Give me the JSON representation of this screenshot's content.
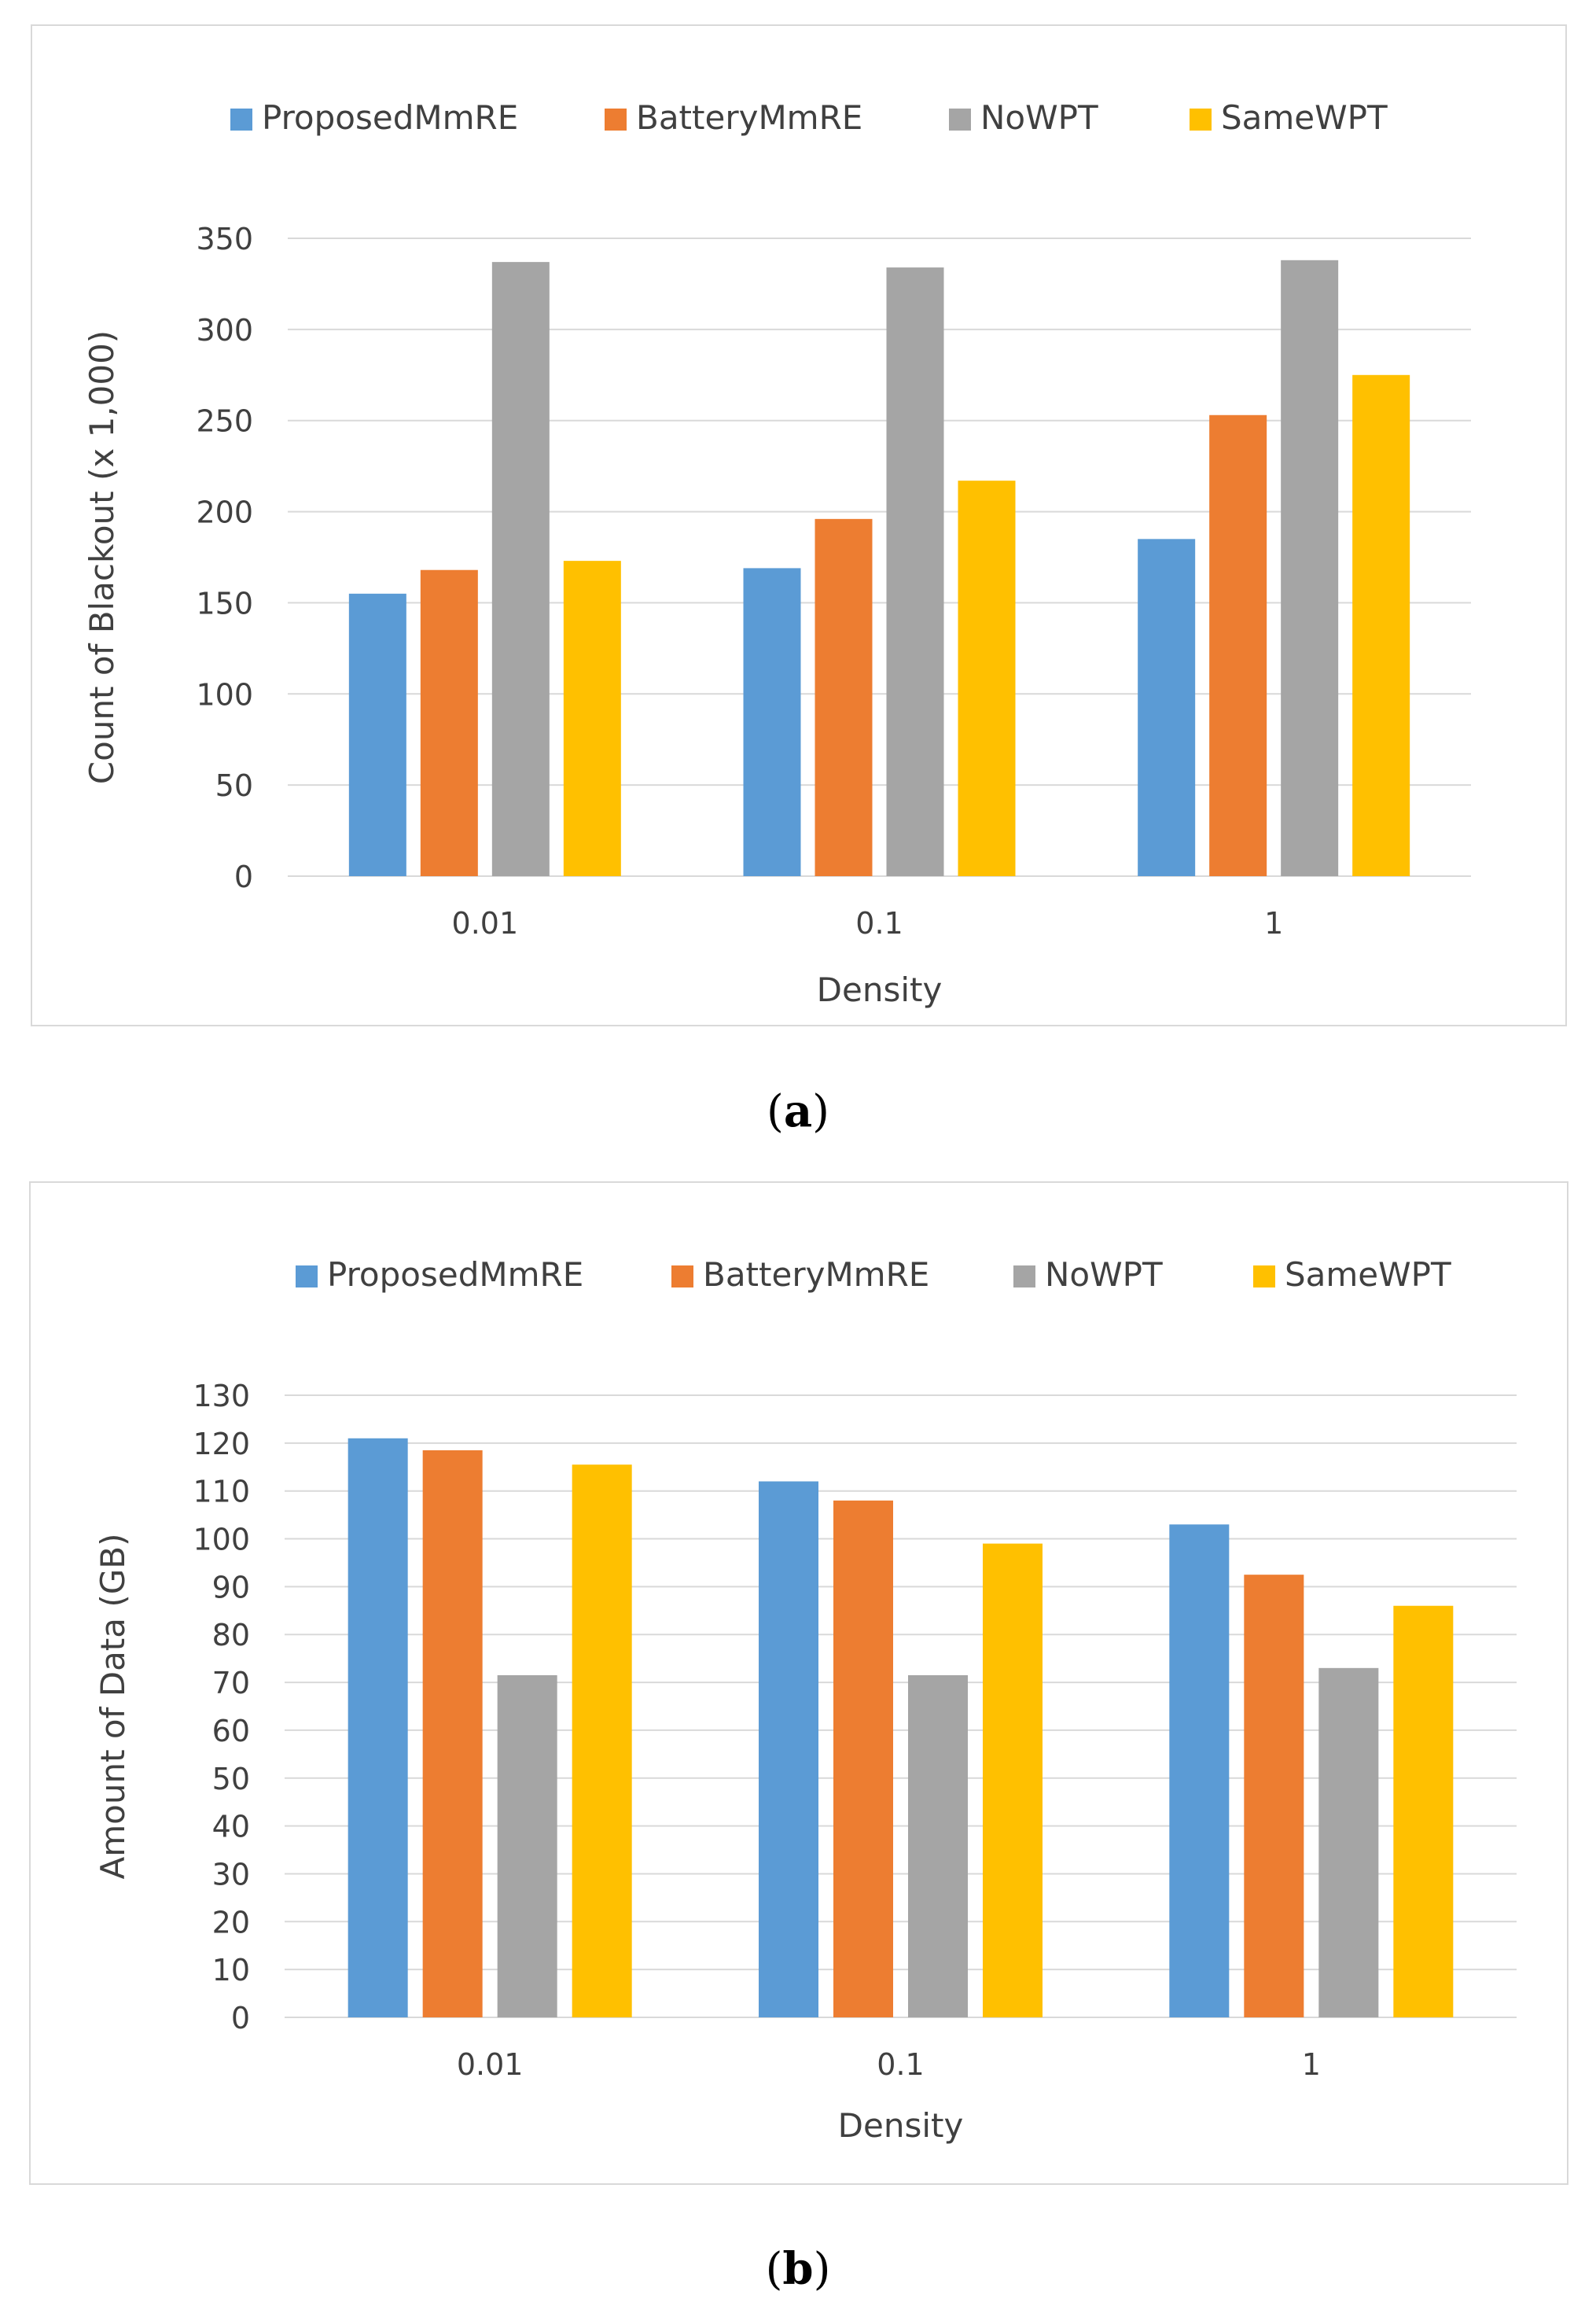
{
  "chart_data": [
    {
      "type": "bar",
      "caption": "a",
      "categories": [
        "0.01",
        "0.1",
        "1"
      ],
      "series": [
        {
          "name": "ProposedMmRE",
          "color": "#5b9bd5",
          "values": [
            155,
            169,
            185
          ]
        },
        {
          "name": "BatteryMmRE",
          "color": "#ed7d31",
          "values": [
            168,
            196,
            253
          ]
        },
        {
          "name": "NoWPT",
          "color": "#a5a5a5",
          "values": [
            337,
            334,
            338
          ]
        },
        {
          "name": "SameWPT",
          "color": "#ffc000",
          "values": [
            173,
            217,
            275
          ]
        }
      ],
      "xlabel": "Density",
      "ylabel": "Count of Blackout  (x 1,000)",
      "ylim": [
        0,
        350
      ],
      "yticks": [
        "0",
        "50",
        "100",
        "150",
        "200",
        "250",
        "300",
        "350"
      ],
      "grid": true,
      "legend": "top"
    },
    {
      "type": "bar",
      "caption": "b",
      "categories": [
        "0.01",
        "0.1",
        "1"
      ],
      "series": [
        {
          "name": "ProposedMmRE",
          "color": "#5b9bd5",
          "values": [
            121,
            112,
            103
          ]
        },
        {
          "name": "BatteryMmRE",
          "color": "#ed7d31",
          "values": [
            118.5,
            108,
            92.5
          ]
        },
        {
          "name": "NoWPT",
          "color": "#a5a5a5",
          "values": [
            71.5,
            71.5,
            73
          ]
        },
        {
          "name": "SameWPT",
          "color": "#ffc000",
          "values": [
            115.5,
            99,
            86
          ]
        }
      ],
      "xlabel": "Density",
      "ylabel": "Amount of Data  (GB)",
      "ylim": [
        0,
        130
      ],
      "yticks": [
        "0",
        "10",
        "20",
        "30",
        "40",
        "50",
        "60",
        "70",
        "80",
        "90",
        "100",
        "110",
        "120",
        "130"
      ],
      "grid": true,
      "legend": "top"
    }
  ]
}
